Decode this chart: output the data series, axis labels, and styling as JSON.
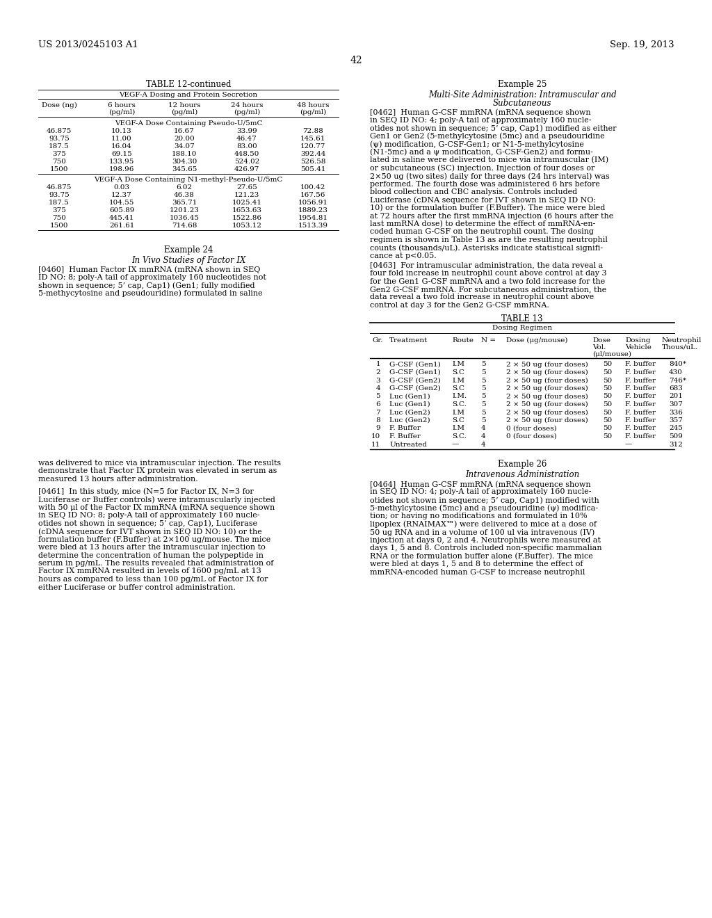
{
  "bg_color": "#ffffff",
  "page_number": "42",
  "header_left": "US 2013/0245103 A1",
  "header_right": "Sep. 19, 2013",
  "table12_title": "TABLE 12-continued",
  "table12_subtitle": "VEGF-A Dosing and Protein Secretion",
  "table12_section1_title": "VEGF-A Dose Containing Pseudo-U/5mC",
  "table12_section1_rows": [
    [
      "46.875",
      "10.13",
      "16.67",
      "33.99",
      "72.88"
    ],
    [
      "93.75",
      "11.00",
      "20.00",
      "46.47",
      "145.61"
    ],
    [
      "187.5",
      "16.04",
      "34.07",
      "83.00",
      "120.77"
    ],
    [
      "375",
      "69.15",
      "188.10",
      "448.50",
      "392.44"
    ],
    [
      "750",
      "133.95",
      "304.30",
      "524.02",
      "526.58"
    ],
    [
      "1500",
      "198.96",
      "345.65",
      "426.97",
      "505.41"
    ]
  ],
  "table12_section2_title": "VEGF-A Dose Containing N1-methyl-Pseudo-U/5mC",
  "table12_section2_rows": [
    [
      "46.875",
      "0.03",
      "6.02",
      "27.65",
      "100.42"
    ],
    [
      "93.75",
      "12.37",
      "46.38",
      "121.23",
      "167.56"
    ],
    [
      "187.5",
      "104.55",
      "365.71",
      "1025.41",
      "1056.91"
    ],
    [
      "375",
      "605.89",
      "1201.23",
      "1653.63",
      "1889.23"
    ],
    [
      "750",
      "445.41",
      "1036.45",
      "1522.86",
      "1954.81"
    ],
    [
      "1500",
      "261.61",
      "714.68",
      "1053.12",
      "1513.39"
    ]
  ],
  "example24_title": "Example 24",
  "example24_subtitle": "In Vivo Studies of Factor IX",
  "para460_lines": [
    "[0460]  Human Factor IX mmRNA (mRNA shown in SEQ",
    "ID NO: 8; poly-A tail of approximately 160 nucleotides not",
    "shown in sequence; 5’ cap, Cap1) (Gen1; fully modified",
    "5-methycytosine and pseudouridine) formulated in saline"
  ],
  "example25_title": "Example 25",
  "example25_line1": "Multi-Site Administration: Intramuscular and",
  "example25_line2": "Subcutaneous",
  "para462_lines": [
    "[0462]  Human G-CSF mmRNA (mRNA sequence shown",
    "in SEQ ID NO: 4; poly-A tail of approximately 160 nucle-",
    "otides not shown in sequence; 5’ cap, Cap1) modified as either",
    "Gen1 or Gen2 (5-methylcytosine (5mc) and a pseudouridine",
    "(ψ) modification, G-CSF-Gen1; or N1-5-methylcytosine",
    "(N1-5mc) and a ψ modification, G-CSF-Gen2) and formu-",
    "lated in saline were delivered to mice via intramuscular (IM)",
    "or subcutaneous (SC) injection. Injection of four doses or",
    "2×50 ug (two sites) daily for three days (24 hrs interval) was",
    "performed. The fourth dose was administered 6 hrs before",
    "blood collection and CBC analysis. Controls included",
    "Luciferase (cDNA sequence for IVT shown in SEQ ID NO:",
    "10) or the formulation buffer (F.Buffer). The mice were bled",
    "at 72 hours after the first mmRNA injection (6 hours after the",
    "last mmRNA dose) to determine the effect of mmRNA-en-",
    "coded human G-CSF on the neutrophil count. The dosing",
    "regimen is shown in Table 13 as are the resulting neutrophil",
    "counts (thousands/uL). Asterisks indicate statistical signifi-",
    "cance at p<0.05."
  ],
  "para463_lines": [
    "[0463]  For intramuscular administration, the data reveal a",
    "four fold increase in neutrophil count above control at day 3",
    "for the Gen1 G-CSF mmRNA and a two fold increase for the",
    "Gen2 G-CSF mmRNA. For subcutaneous administration, the",
    "data reveal a two fold increase in neutrophil count above",
    "control at day 3 for the Gen2 G-CSF mmRNA."
  ],
  "table13_title": "TABLE 13",
  "table13_regimen": "Dosing Regimen",
  "table13_rows": [
    [
      "1",
      "G-CSF (Gen1)",
      "I.M",
      "5",
      "2 × 50 ug (four doses)",
      "50",
      "F. buffer",
      "840*"
    ],
    [
      "2",
      "G-CSF (Gen1)",
      "S.C",
      "5",
      "2 × 50 ug (four doses)",
      "50",
      "F. buffer",
      "430"
    ],
    [
      "3",
      "G-CSF (Gen2)",
      "I.M",
      "5",
      "2 × 50 ug (four doses)",
      "50",
      "F. buffer",
      "746*"
    ],
    [
      "4",
      "G-CSF (Gen2)",
      "S.C",
      "5",
      "2 × 50 ug (four doses)",
      "50",
      "F. buffer",
      "683"
    ],
    [
      "5",
      "Luc (Gen1)",
      "I.M.",
      "5",
      "2 × 50 ug (four doses)",
      "50",
      "F. buffer",
      "201"
    ],
    [
      "6",
      "Luc (Gen1)",
      "S.C.",
      "5",
      "2 × 50 ug (four doses)",
      "50",
      "F. buffer",
      "307"
    ],
    [
      "7",
      "Luc (Gen2)",
      "I.M",
      "5",
      "2 × 50 ug (four doses)",
      "50",
      "F. buffer",
      "336"
    ],
    [
      "8",
      "Luc (Gen2)",
      "S.C",
      "5",
      "2 × 50 ug (four doses)",
      "50",
      "F. buffer",
      "357"
    ],
    [
      "9",
      "F. Buffer",
      "I.M",
      "4",
      "0 (four doses)",
      "50",
      "F. buffer",
      "245"
    ],
    [
      "10",
      "F. Buffer",
      "S.C.",
      "4",
      "0 (four doses)",
      "50",
      "F. buffer",
      "509"
    ],
    [
      "11",
      "Untreated",
      "—",
      "4",
      "",
      "",
      "—",
      "312"
    ]
  ],
  "bottom_left_lines": [
    "was delivered to mice via intramuscular injection. The results",
    "demonstrate that Factor IX protein was elevated in serum as",
    "measured 13 hours after administration."
  ],
  "para461_lines": [
    "[0461]  In this study, mice (N=5 for Factor IX, N=3 for",
    "Luciferase or Buffer controls) were intramuscularly injected",
    "with 50 μl of the Factor IX mmRNA (mRNA sequence shown",
    "in SEQ ID NO: 8; poly-A tail of approximately 160 nucle-",
    "otides not shown in sequence; 5’ cap, Cap1), Luciferase",
    "(cDNA sequence for IVT shown in SEQ ID NO: 10) or the",
    "formulation buffer (F.Buffer) at 2×100 ug/mouse. The mice",
    "were bled at 13 hours after the intramuscular injection to",
    "determine the concentration of human the polypeptide in",
    "serum in pg/mL. The results revealed that administration of",
    "Factor IX mmRNA resulted in levels of 1600 pg/mL at 13",
    "hours as compared to less than 100 pg/mL of Factor IX for",
    "either Luciferase or buffer control administration."
  ],
  "example26_title": "Example 26",
  "example26_subtitle": "Intravenous Administration",
  "para464_lines": [
    "[0464]  Human G-CSF mmRNA (mRNA sequence shown",
    "in SEQ ID NO: 4; poly-A tail of approximately 160 nucle-",
    "otides not shown in sequence; 5’ cap, Cap1) modified with",
    "5-methylcytosine (5mc) and a pseudouridine (ψ) modifica-",
    "tion; or having no modifications and formulated in 10%",
    "lipoplex (RNAIMAX™) were delivered to mice at a dose of",
    "50 ug RNA and in a volume of 100 ul via intravenous (IV)",
    "injection at days 0, 2 and 4. Neutrophils were measured at",
    "days 1, 5 and 8. Controls included non-specific mammalian",
    "RNA or the formulation buffer alone (F.Buffer). The mice",
    "were bled at days 1, 5 and 8 to determine the effect of",
    "mmRNA-encoded human G-CSF to increase neutrophil"
  ]
}
